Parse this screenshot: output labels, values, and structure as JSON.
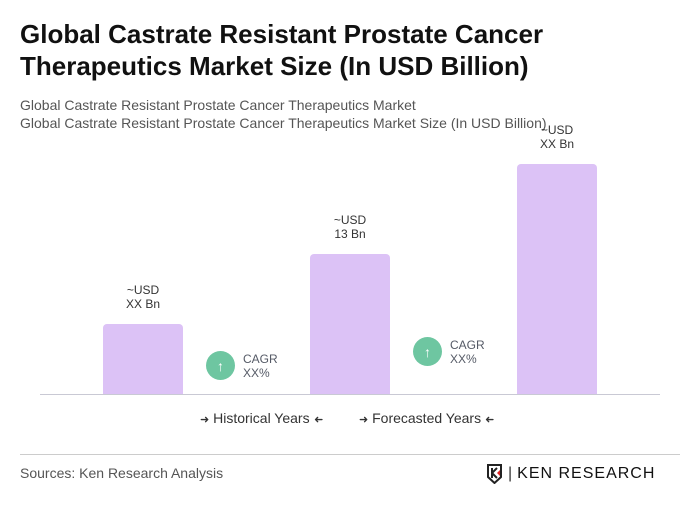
{
  "title": "Global Castrate Resistant Prostate Cancer Therapeutics Market Size (In USD Billion)",
  "subtitle1": "Global Castrate Resistant Prostate Cancer Therapeutics Market",
  "subtitle2": "Global Castrate Resistant Prostate Cancer Therapeutics Market Size (In USD Billion)",
  "chart_data": {
    "type": "bar",
    "values": [
      6.5,
      13,
      21.4
    ],
    "data_labels": [
      [
        "~USD",
        "XX Bn"
      ],
      [
        "~USD",
        "13 Bn"
      ],
      [
        "~USD",
        "XX Bn"
      ]
    ],
    "bar_color": "#dcc2f6",
    "cagr": [
      {
        "label": "CAGR",
        "value": "XX%"
      },
      {
        "label": "CAGR",
        "value": "XX%"
      }
    ],
    "cagr_color": "#6ec6a1",
    "legend": [
      "Historical Years",
      "Forecasted Years"
    ],
    "grid": false
  },
  "footer": {
    "source": "Sources: Ken Research Analysis",
    "logo": "KEN RESEARCH"
  }
}
